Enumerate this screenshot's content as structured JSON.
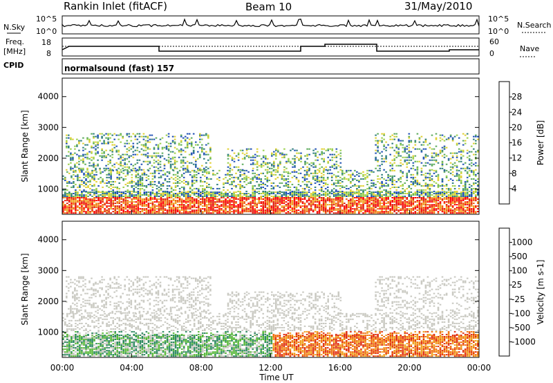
{
  "header": {
    "station": "Rankin Inlet (fitACF)",
    "beam": "Beam 10",
    "date": "31/May/2010"
  },
  "top_panels": {
    "nsky_label": "N.Sky",
    "nsearch_label": "N.Search",
    "nsky_ticks": [
      "10^5",
      "10^0"
    ],
    "nsearch_ticks": [
      "10^5",
      "10^0"
    ],
    "freq_label_1": "Freq.",
    "freq_label_2": "[MHz]",
    "freq_ticks": [
      "18",
      "8"
    ],
    "nave_label": "Nave",
    "nave_ticks": [
      "60",
      "0"
    ],
    "cpid_label": "CPID",
    "cpid_value": "normalsound (fast) 157"
  },
  "chart_data": [
    {
      "type": "heatmap",
      "title": "",
      "xlabel": "",
      "ylabel": "Slant Range [km]",
      "x_ticks": [
        "00:00",
        "04:00",
        "08:00",
        "12:00",
        "16:00",
        "20:00",
        "00:00"
      ],
      "y_ticks": [
        1000,
        2000,
        3000,
        4000
      ],
      "ylim": [
        180,
        4600
      ],
      "xlim_hours": [
        0,
        24
      ],
      "colorbar": {
        "label": "Power [dB]",
        "ticks": [
          "28",
          "24",
          "20",
          "16",
          "12",
          "8",
          "4"
        ],
        "colors": [
          "#0000ff",
          "#1f4fb5",
          "#2e7d7b",
          "#5aaa5a",
          "#9ad04a",
          "#e0d030",
          "#f0a020",
          "#f06010",
          "#e02010",
          "#ff0000"
        ]
      }
    },
    {
      "type": "heatmap",
      "title": "",
      "xlabel": "Time UT",
      "ylabel": "Slant Range [km]",
      "x_ticks": [
        "00:00",
        "04:00",
        "08:00",
        "12:00",
        "16:00",
        "20:00",
        "00:00"
      ],
      "y_ticks": [
        1000,
        2000,
        3000,
        4000
      ],
      "ylim": [
        180,
        4600
      ],
      "xlim_hours": [
        0,
        24
      ],
      "colorbar": {
        "label": "Velocity [m s-1]",
        "ticks": [
          "1000",
          "500",
          "100",
          "25",
          "-25",
          "-100",
          "-500",
          "-1000"
        ],
        "colors": [
          "#1a3ca8",
          "#2a6fb0",
          "#2e8a60",
          "#58b83a",
          "#c8c8c0",
          "#f0a020",
          "#f07010",
          "#e03010",
          "#ff0000"
        ]
      }
    }
  ]
}
